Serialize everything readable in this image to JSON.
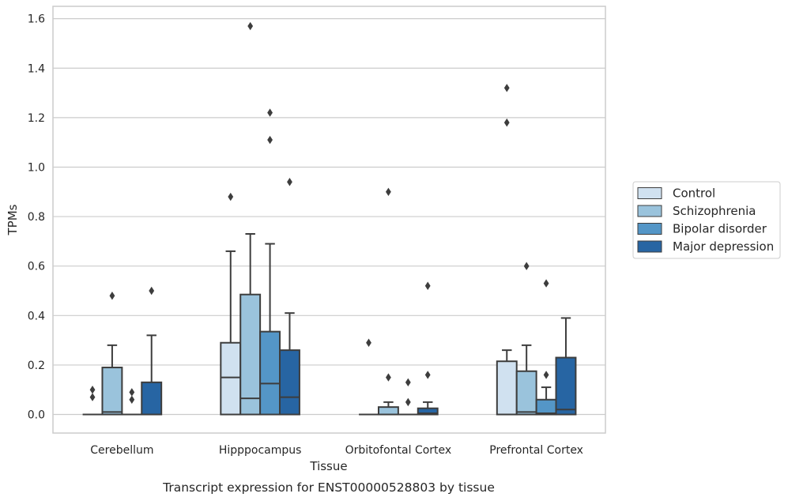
{
  "caption": "Transcript expression for ENST00000528803 by tissue",
  "chart_data": {
    "type": "box",
    "title": "",
    "xlabel": "Tissue",
    "ylabel": "TPMs",
    "ylim": [
      -0.075,
      1.65
    ],
    "yticks": [
      0.0,
      0.2,
      0.4,
      0.6,
      0.8,
      1.0,
      1.2,
      1.4,
      1.6
    ],
    "ytick_labels": [
      "0.0",
      "0.2",
      "0.4",
      "0.6",
      "0.8",
      "1.0",
      "1.2",
      "1.4",
      "1.6"
    ],
    "grid": "y",
    "legend_position": "right",
    "categories": [
      "Cerebellum",
      "Hipppocampus",
      "Orbitofontal Cortex",
      "Prefrontal Cortex"
    ],
    "series": [
      {
        "name": "Control",
        "color": "#d0e1f0",
        "boxes": [
          {
            "whisker_low": 0.0,
            "q1": 0.0,
            "median": 0.0,
            "q3": 0.0,
            "whisker_high": 0.0,
            "outliers": [
              0.07,
              0.1
            ]
          },
          {
            "whisker_low": 0.0,
            "q1": 0.0,
            "median": 0.15,
            "q3": 0.29,
            "whisker_high": 0.66,
            "outliers": [
              0.88
            ]
          },
          {
            "whisker_low": 0.0,
            "q1": 0.0,
            "median": 0.0,
            "q3": 0.0,
            "whisker_high": 0.0,
            "outliers": [
              0.29
            ]
          },
          {
            "whisker_low": 0.0,
            "q1": 0.0,
            "median": 0.0,
            "q3": 0.215,
            "whisker_high": 0.26,
            "outliers": [
              1.18,
              1.32
            ]
          }
        ]
      },
      {
        "name": "Schizophrenia",
        "color": "#9ac3dc",
        "boxes": [
          {
            "whisker_low": 0.0,
            "q1": 0.0,
            "median": 0.01,
            "q3": 0.19,
            "whisker_high": 0.28,
            "outliers": [
              0.48
            ]
          },
          {
            "whisker_low": 0.0,
            "q1": 0.0,
            "median": 0.065,
            "q3": 0.485,
            "whisker_high": 0.73,
            "outliers": [
              1.57
            ]
          },
          {
            "whisker_low": 0.0,
            "q1": 0.0,
            "median": 0.0,
            "q3": 0.03,
            "whisker_high": 0.05,
            "outliers": [
              0.15,
              0.9
            ]
          },
          {
            "whisker_low": 0.0,
            "q1": 0.0,
            "median": 0.01,
            "q3": 0.175,
            "whisker_high": 0.28,
            "outliers": [
              0.6
            ]
          }
        ]
      },
      {
        "name": "Bipolar disorder",
        "color": "#5496c7",
        "boxes": [
          {
            "whisker_low": 0.0,
            "q1": 0.0,
            "median": 0.0,
            "q3": 0.0,
            "whisker_high": 0.0,
            "outliers": [
              0.06,
              0.09
            ]
          },
          {
            "whisker_low": 0.0,
            "q1": 0.0,
            "median": 0.125,
            "q3": 0.335,
            "whisker_high": 0.69,
            "outliers": [
              1.11,
              1.22
            ]
          },
          {
            "whisker_low": 0.0,
            "q1": 0.0,
            "median": 0.0,
            "q3": 0.0,
            "whisker_high": 0.0,
            "outliers": [
              0.05,
              0.13
            ]
          },
          {
            "whisker_low": 0.0,
            "q1": 0.0,
            "median": 0.005,
            "q3": 0.06,
            "whisker_high": 0.11,
            "outliers": [
              0.16,
              0.53
            ]
          }
        ]
      },
      {
        "name": "Major depression",
        "color": "#2765a3",
        "boxes": [
          {
            "whisker_low": 0.0,
            "q1": 0.0,
            "median": 0.0,
            "q3": 0.13,
            "whisker_high": 0.32,
            "outliers": [
              0.5
            ]
          },
          {
            "whisker_low": 0.0,
            "q1": 0.0,
            "median": 0.07,
            "q3": 0.26,
            "whisker_high": 0.41,
            "outliers": [
              0.94
            ]
          },
          {
            "whisker_low": 0.0,
            "q1": 0.0,
            "median": 0.005,
            "q3": 0.025,
            "whisker_high": 0.05,
            "outliers": [
              0.16,
              0.52
            ]
          },
          {
            "whisker_low": 0.0,
            "q1": 0.0,
            "median": 0.02,
            "q3": 0.23,
            "whisker_high": 0.39,
            "outliers": []
          }
        ]
      }
    ]
  }
}
